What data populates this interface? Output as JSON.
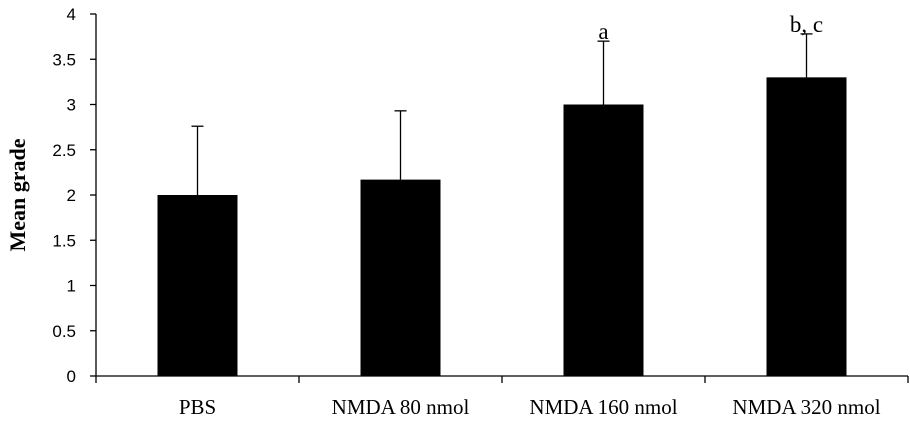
{
  "chart_data": {
    "type": "bar",
    "title": "",
    "xlabel": "",
    "ylabel": "Mean grade",
    "ylim": [
      0,
      4
    ],
    "yticks": [
      "0",
      "0.5",
      "1",
      "1.5",
      "2",
      "2.5",
      "3",
      "3.5",
      "4"
    ],
    "categories": [
      "PBS",
      "NMDA 80 nmol",
      "NMDA 160 nmol",
      "NMDA 320 nmol"
    ],
    "values": [
      2.0,
      2.17,
      3.0,
      3.3
    ],
    "error_upper": [
      0.76,
      0.76,
      0.7,
      0.48
    ],
    "annotations": [
      "",
      "",
      "a",
      "b, c"
    ],
    "bar_color": "#000000",
    "grid": false
  }
}
